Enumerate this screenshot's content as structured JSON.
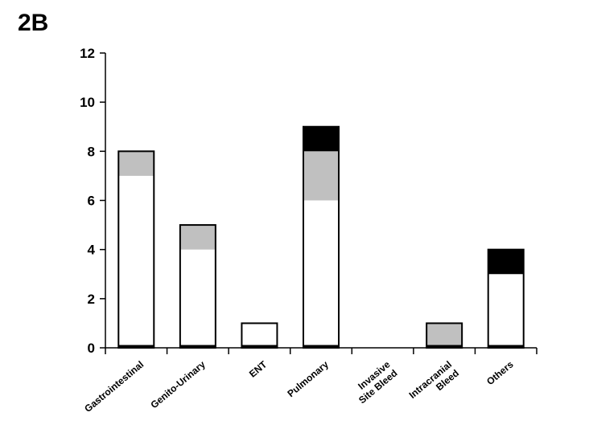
{
  "panel_label": "2B",
  "chart_data": {
    "type": "bar",
    "stacked": true,
    "title": "",
    "xlabel": "",
    "ylabel": "",
    "ylim": [
      0,
      12
    ],
    "yticks": [
      0,
      2,
      4,
      6,
      8,
      10,
      12
    ],
    "grid": false,
    "legend": "none",
    "categories": [
      [
        "Gastrointestinal"
      ],
      [
        "Genito-Urinary"
      ],
      [
        "ENT"
      ],
      [
        "Pulmonary"
      ],
      [
        "Invasive",
        "Site Bleed"
      ],
      [
        "Intracranial",
        "Bleed"
      ],
      [
        "Others"
      ]
    ],
    "series": [
      {
        "color": "#ffffff",
        "values": [
          7,
          4,
          1,
          6,
          0,
          0,
          3
        ]
      },
      {
        "color": "#c0c0c0",
        "values": [
          1,
          1,
          0,
          2,
          0,
          1,
          0
        ]
      },
      {
        "color": "#000000",
        "values": [
          0,
          0,
          0,
          1,
          0,
          0,
          1
        ]
      }
    ]
  }
}
